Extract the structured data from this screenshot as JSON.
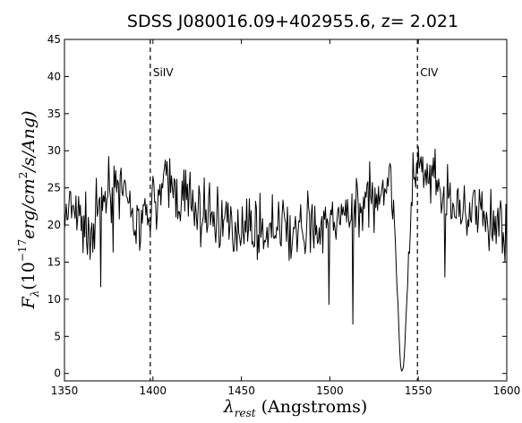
{
  "chart_data": {
    "type": "line",
    "title": "SDSS J080016.09+402955.6,   z= 2.021",
    "xlabel": {
      "main": "λ",
      "sub": "rest",
      "rest": " (Angstroms)"
    },
    "ylabel": {
      "f": "F",
      "sub": "λ",
      "open": "(10",
      "exp": "−17",
      "units": "erg/cm",
      "sq": "2",
      "tail": "/s/Ang)"
    },
    "xlim": [
      1350,
      1600
    ],
    "ylim": [
      -1,
      45
    ],
    "xticks": [
      1350,
      1400,
      1450,
      1500,
      1550,
      1600
    ],
    "yticks": [
      0,
      5,
      10,
      15,
      20,
      25,
      30,
      35,
      40,
      45
    ],
    "grid": false,
    "annotations": [
      {
        "label": "SiIV",
        "x": 1398.5,
        "style": "dashed"
      },
      {
        "label": "CIV",
        "x": 1549.5,
        "style": "dashed"
      }
    ],
    "series": [
      {
        "points": [
          [
            1350,
            20.5
          ],
          [
            1355,
            22.0
          ],
          [
            1360,
            20.0
          ],
          [
            1365,
            19.0
          ],
          [
            1370,
            22.5
          ],
          [
            1375,
            25.0
          ],
          [
            1379,
            27.0
          ],
          [
            1385,
            22.0
          ],
          [
            1390,
            20.0
          ],
          [
            1395,
            19.5
          ],
          [
            1400,
            23.0
          ],
          [
            1405,
            24.5
          ],
          [
            1410,
            25.5
          ],
          [
            1415,
            24.0
          ],
          [
            1420,
            23.0
          ],
          [
            1425,
            22.0
          ],
          [
            1430,
            21.5
          ],
          [
            1435,
            21.0
          ],
          [
            1440,
            20.5
          ],
          [
            1445,
            19.5
          ],
          [
            1450,
            20.0
          ],
          [
            1455,
            20.0
          ],
          [
            1460,
            19.5
          ],
          [
            1465,
            19.0
          ],
          [
            1470,
            19.5
          ],
          [
            1475,
            19.0
          ],
          [
            1480,
            19.0
          ],
          [
            1485,
            19.0
          ],
          [
            1490,
            19.5
          ],
          [
            1495,
            19.5
          ],
          [
            1500,
            20.0
          ],
          [
            1505,
            20.5
          ],
          [
            1510,
            21.5
          ],
          [
            1515,
            22.5
          ],
          [
            1520,
            23.0
          ],
          [
            1525,
            24.0
          ],
          [
            1530,
            25.5
          ],
          [
            1533,
            26.0
          ],
          [
            1536,
            24.0
          ],
          [
            1538,
            12.0
          ],
          [
            1540,
            1.0
          ],
          [
            1541,
            0.0
          ],
          [
            1542,
            1.5
          ],
          [
            1544,
            12.0
          ],
          [
            1546,
            25.0
          ],
          [
            1548,
            26.5
          ],
          [
            1550,
            27.0
          ],
          [
            1555,
            26.0
          ],
          [
            1560,
            25.0
          ],
          [
            1565,
            23.5
          ],
          [
            1570,
            22.5
          ],
          [
            1575,
            22.0
          ],
          [
            1580,
            21.5
          ],
          [
            1585,
            21.0
          ],
          [
            1590,
            20.5
          ],
          [
            1595,
            19.5
          ],
          [
            1600,
            19.0
          ]
        ]
      }
    ]
  }
}
